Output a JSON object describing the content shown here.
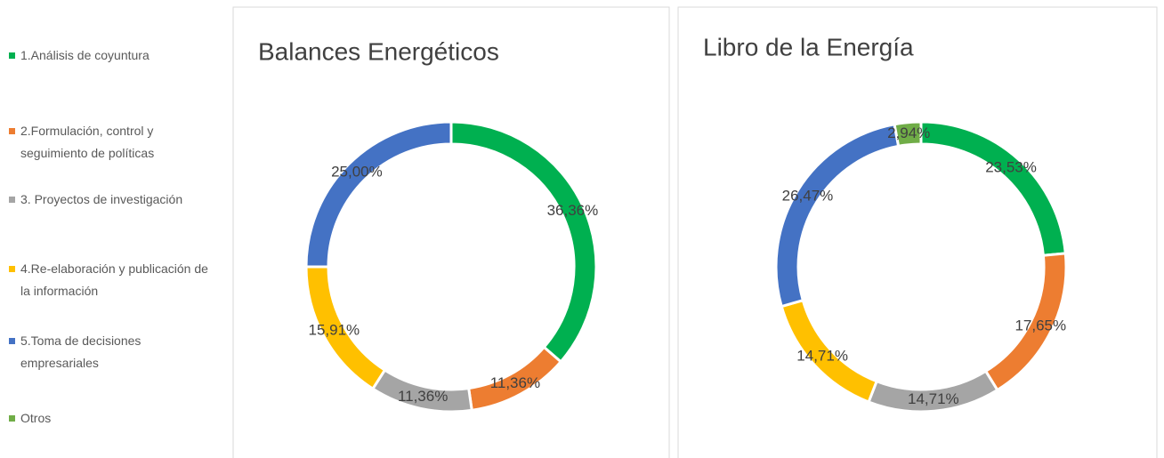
{
  "chart_data": [
    {
      "type": "donut",
      "title": "Balances Energéticos",
      "categories": [
        "1.Análisis de coyuntura",
        "2.Formulación, control y seguimiento de políticas",
        "3. Proyectos de investigación",
        "4.Re-elaboración y publicación de la información",
        "5.Toma de decisiones empresariales"
      ],
      "values": [
        36.36,
        11.36,
        11.36,
        15.91,
        25.0
      ],
      "value_labels": [
        "36,36%",
        "11,36%",
        "11,36%",
        "15,91%",
        "25,00%"
      ],
      "colors": [
        "#00b050",
        "#ed7d31",
        "#a5a5a5",
        "#ffc000",
        "#4472c4"
      ]
    },
    {
      "type": "donut",
      "title": "Libro de la Energía",
      "categories": [
        "1.Análisis de coyuntura",
        "2.Formulación, control y seguimiento de políticas",
        "3. Proyectos de investigación",
        "4.Re-elaboración y publicación de la información",
        "5.Toma de decisiones empresariales",
        "Otros"
      ],
      "values": [
        23.53,
        17.65,
        14.71,
        14.71,
        26.47,
        2.94
      ],
      "value_labels": [
        "23,53%",
        "17,65%",
        "14,71%",
        "14,71%",
        "26,47%",
        "2,94%"
      ],
      "colors": [
        "#00b050",
        "#ed7d31",
        "#a5a5a5",
        "#ffc000",
        "#4472c4",
        "#70ad47"
      ],
      "legend": "left"
    }
  ]
}
